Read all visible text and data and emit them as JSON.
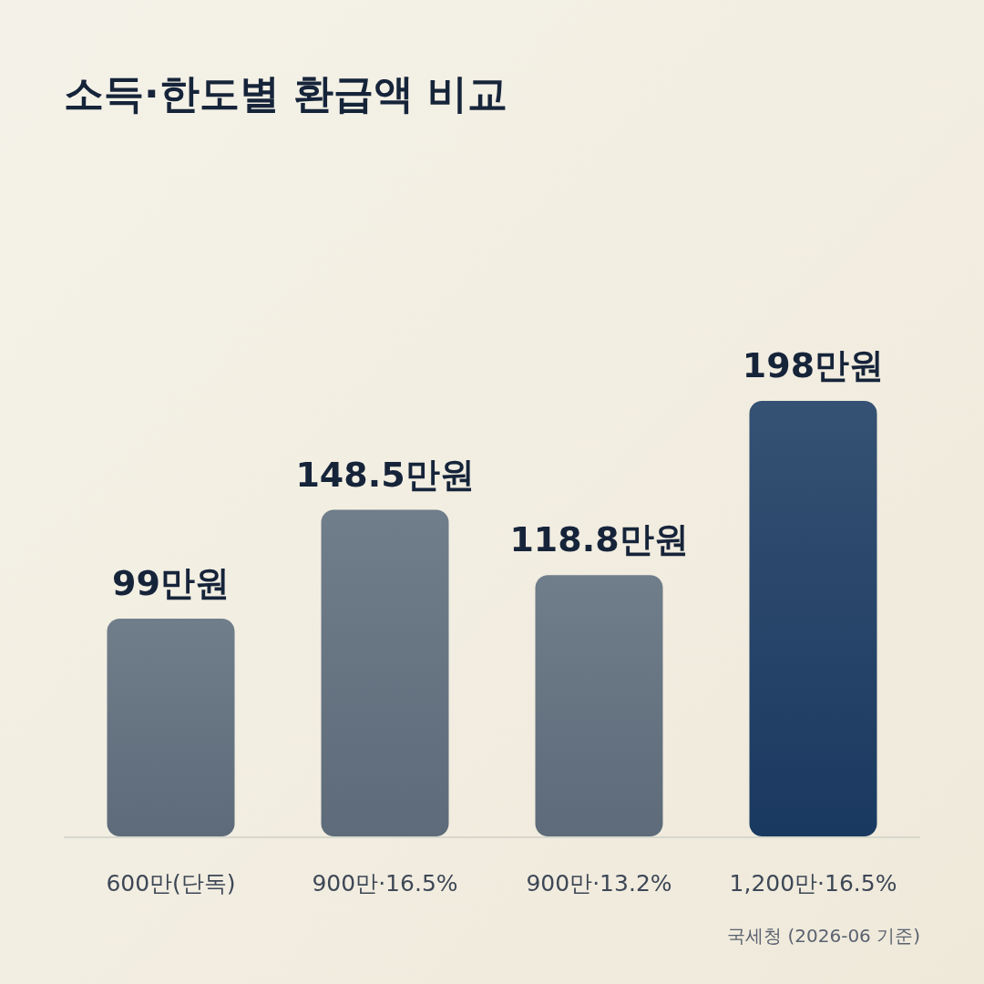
{
  "chart_data": {
    "type": "bar",
    "title": "소득·한도별 환급액 비교",
    "categories": [
      "600만(단독)",
      "900만·16.5%",
      "900만·13.2%",
      "1,200만·16.5%"
    ],
    "values": [
      99,
      148.5,
      118.8,
      198
    ],
    "value_labels": [
      "99만원",
      "148.5만원",
      "118.8만원",
      "198만원"
    ],
    "colors": [
      "#5d6b7a",
      "#5d6b7a",
      "#5d6b7a",
      "#1a3960"
    ],
    "annotations": [
      "국세청 (2026-06 기준)"
    ]
  }
}
